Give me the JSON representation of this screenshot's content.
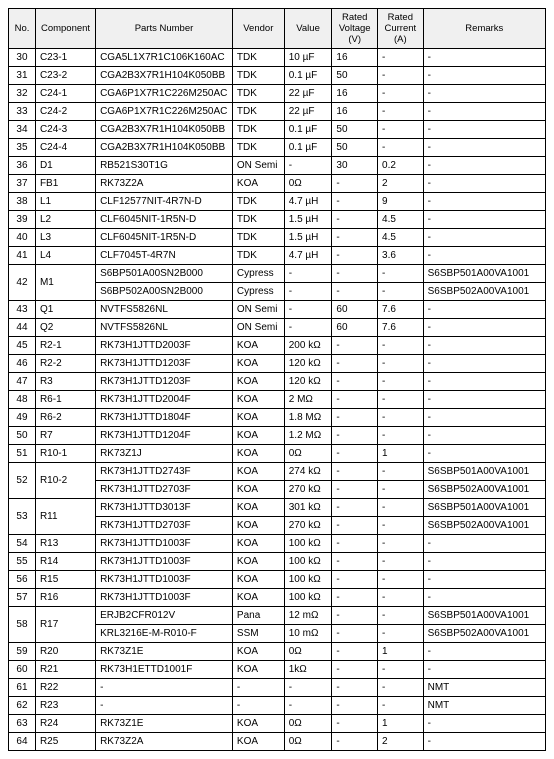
{
  "columns": [
    "No.",
    "Component",
    "Parts Number",
    "Vendor",
    "Value",
    "Rated\nVoltage\n(V)",
    "Rated\nCurrent\n(A)",
    "Remarks"
  ],
  "rows": [
    {
      "no": "30",
      "comp": "C23-1",
      "parts": "CGA5L1X7R1C106K160AC",
      "vendor": "TDK",
      "value": "10 µF",
      "rv": "16",
      "rc": "-",
      "remarks": "-"
    },
    {
      "no": "31",
      "comp": "C23-2",
      "parts": "CGA2B3X7R1H104K050BB",
      "vendor": "TDK",
      "value": "0.1 µF",
      "rv": "50",
      "rc": "-",
      "remarks": "-"
    },
    {
      "no": "32",
      "comp": "C24-1",
      "parts": "CGA6P1X7R1C226M250AC",
      "vendor": "TDK",
      "value": "22 µF",
      "rv": "16",
      "rc": "-",
      "remarks": "-"
    },
    {
      "no": "33",
      "comp": "C24-2",
      "parts": "CGA6P1X7R1C226M250AC",
      "vendor": "TDK",
      "value": "22 µF",
      "rv": "16",
      "rc": "-",
      "remarks": "-"
    },
    {
      "no": "34",
      "comp": "C24-3",
      "parts": "CGA2B3X7R1H104K050BB",
      "vendor": "TDK",
      "value": "0.1 µF",
      "rv": "50",
      "rc": "-",
      "remarks": "-"
    },
    {
      "no": "35",
      "comp": "C24-4",
      "parts": "CGA2B3X7R1H104K050BB",
      "vendor": "TDK",
      "value": "0.1 µF",
      "rv": "50",
      "rc": "-",
      "remarks": "-"
    },
    {
      "no": "36",
      "comp": "D1",
      "parts": "RB521S30T1G",
      "vendor": "ON Semi",
      "value": "-",
      "rv": "30",
      "rc": "0.2",
      "remarks": "-"
    },
    {
      "no": "37",
      "comp": "FB1",
      "parts": "RK73Z2A",
      "vendor": "KOA",
      "value": "0Ω",
      "rv": "-",
      "rc": "2",
      "remarks": "-"
    },
    {
      "no": "38",
      "comp": "L1",
      "parts": "CLF12577NIT-4R7N-D",
      "vendor": "TDK",
      "value": "4.7 µH",
      "rv": "-",
      "rc": "9",
      "remarks": "-"
    },
    {
      "no": "39",
      "comp": "L2",
      "parts": "CLF6045NIT-1R5N-D",
      "vendor": "TDK",
      "value": "1.5 µH",
      "rv": "-",
      "rc": "4.5",
      "remarks": "-"
    },
    {
      "no": "40",
      "comp": "L3",
      "parts": "CLF6045NIT-1R5N-D",
      "vendor": "TDK",
      "value": "1.5 µH",
      "rv": "-",
      "rc": "4.5",
      "remarks": "-"
    },
    {
      "no": "41",
      "comp": "L4",
      "parts": "CLF7045T-4R7N",
      "vendor": "TDK",
      "value": "4.7 µH",
      "rv": "-",
      "rc": "3.6",
      "remarks": "-"
    },
    {
      "no": "42",
      "comp": "M1",
      "rowspan": 2,
      "parts": "S6BP501A00SN2B000",
      "vendor": "Cypress",
      "value": "-",
      "rv": "-",
      "rc": "-",
      "remarks": "S6SBP501A00VA1001"
    },
    {
      "no": "",
      "comp": "",
      "parts": "S6BP502A00SN2B000",
      "vendor": "Cypress",
      "value": "-",
      "rv": "-",
      "rc": "-",
      "remarks": "S6SBP502A00VA1001"
    },
    {
      "no": "43",
      "comp": "Q1",
      "parts": "NVTFS5826NL",
      "vendor": "ON Semi",
      "value": "-",
      "rv": "60",
      "rc": "7.6",
      "remarks": "-"
    },
    {
      "no": "44",
      "comp": "Q2",
      "parts": "NVTFS5826NL",
      "vendor": "ON Semi",
      "value": "-",
      "rv": "60",
      "rc": "7.6",
      "remarks": "-"
    },
    {
      "no": "45",
      "comp": "R2-1",
      "parts": "RK73H1JTTD2003F",
      "vendor": "KOA",
      "value": "200 kΩ",
      "rv": "-",
      "rc": "-",
      "remarks": "-"
    },
    {
      "no": "46",
      "comp": "R2-2",
      "parts": "RK73H1JTTD1203F",
      "vendor": "KOA",
      "value": "120 kΩ",
      "rv": "-",
      "rc": "-",
      "remarks": "-"
    },
    {
      "no": "47",
      "comp": "R3",
      "parts": "RK73H1JTTD1203F",
      "vendor": "KOA",
      "value": "120 kΩ",
      "rv": "-",
      "rc": "-",
      "remarks": "-"
    },
    {
      "no": "48",
      "comp": "R6-1",
      "parts": "RK73H1JTTD2004F",
      "vendor": "KOA",
      "value": "2 MΩ",
      "rv": "-",
      "rc": "-",
      "remarks": "-"
    },
    {
      "no": "49",
      "comp": "R6-2",
      "parts": "RK73H1JTTD1804F",
      "vendor": "KOA",
      "value": "1.8 MΩ",
      "rv": "-",
      "rc": "-",
      "remarks": "-"
    },
    {
      "no": "50",
      "comp": "R7",
      "parts": "RK73H1JTTD1204F",
      "vendor": "KOA",
      "value": "1.2 MΩ",
      "rv": "-",
      "rc": "-",
      "remarks": "-"
    },
    {
      "no": "51",
      "comp": "R10-1",
      "parts": "RK73Z1J",
      "vendor": "KOA",
      "value": "0Ω",
      "rv": "-",
      "rc": "1",
      "remarks": "-"
    },
    {
      "no": "52",
      "comp": "R10-2",
      "rowspan": 2,
      "parts": "RK73H1JTTD2743F",
      "vendor": "KOA",
      "value": "274 kΩ",
      "rv": "-",
      "rc": "-",
      "remarks": "S6SBP501A00VA1001"
    },
    {
      "no": "",
      "comp": "",
      "parts": "RK73H1JTTD2703F",
      "vendor": "KOA",
      "value": "270 kΩ",
      "rv": "-",
      "rc": "-",
      "remarks": "S6SBP502A00VA1001"
    },
    {
      "no": "53",
      "comp": "R11",
      "rowspan": 2,
      "parts": "RK73H1JTTD3013F",
      "vendor": "KOA",
      "value": "301 kΩ",
      "rv": "-",
      "rc": "-",
      "remarks": "S6SBP501A00VA1001"
    },
    {
      "no": "",
      "comp": "",
      "parts": "RK73H1JTTD2703F",
      "vendor": "KOA",
      "value": "270 kΩ",
      "rv": "-",
      "rc": "-",
      "remarks": "S6SBP502A00VA1001"
    },
    {
      "no": "54",
      "comp": "R13",
      "parts": "RK73H1JTTD1003F",
      "vendor": "KOA",
      "value": "100 kΩ",
      "rv": "-",
      "rc": "-",
      "remarks": "-"
    },
    {
      "no": "55",
      "comp": "R14",
      "parts": "RK73H1JTTD1003F",
      "vendor": "KOA",
      "value": "100 kΩ",
      "rv": "-",
      "rc": "-",
      "remarks": "-"
    },
    {
      "no": "56",
      "comp": "R15",
      "parts": "RK73H1JTTD1003F",
      "vendor": "KOA",
      "value": "100 kΩ",
      "rv": "-",
      "rc": "-",
      "remarks": "-"
    },
    {
      "no": "57",
      "comp": "R16",
      "parts": "RK73H1JTTD1003F",
      "vendor": "KOA",
      "value": "100 kΩ",
      "rv": "-",
      "rc": "-",
      "remarks": "-"
    },
    {
      "no": "58",
      "comp": "R17",
      "rowspan": 2,
      "parts": "ERJB2CFR012V",
      "vendor": "Pana",
      "value": "12 mΩ",
      "rv": "-",
      "rc": "-",
      "remarks": "S6SBP501A00VA1001"
    },
    {
      "no": "",
      "comp": "",
      "parts": "KRL3216E-M-R010-F",
      "vendor": "SSM",
      "value": "10 mΩ",
      "rv": "-",
      "rc": "-",
      "remarks": "S6SBP502A00VA1001"
    },
    {
      "no": "59",
      "comp": "R20",
      "parts": "RK73Z1E",
      "vendor": "KOA",
      "value": "0Ω",
      "rv": "-",
      "rc": "1",
      "remarks": "-"
    },
    {
      "no": "60",
      "comp": "R21",
      "parts": "RK73H1ETTD1001F",
      "vendor": "KOA",
      "value": "1kΩ",
      "rv": "-",
      "rc": "-",
      "remarks": "-"
    },
    {
      "no": "61",
      "comp": "R22",
      "parts": "-",
      "vendor": "-",
      "value": "-",
      "rv": "-",
      "rc": "-",
      "remarks": "NMT"
    },
    {
      "no": "62",
      "comp": "R23",
      "parts": "-",
      "vendor": "-",
      "value": "-",
      "rv": "-",
      "rc": "-",
      "remarks": "NMT"
    },
    {
      "no": "63",
      "comp": "R24",
      "parts": "RK73Z1E",
      "vendor": "KOA",
      "value": "0Ω",
      "rv": "-",
      "rc": "1",
      "remarks": "-"
    },
    {
      "no": "64",
      "comp": "R25",
      "parts": "RK73Z2A",
      "vendor": "KOA",
      "value": "0Ω",
      "rv": "-",
      "rc": "2",
      "remarks": "-"
    }
  ]
}
